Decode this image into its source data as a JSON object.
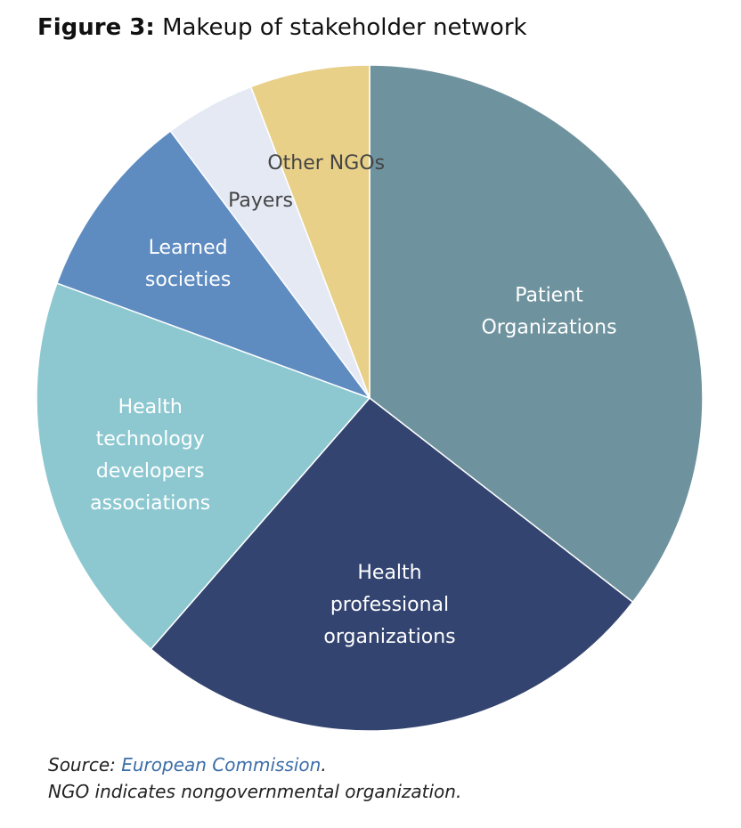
{
  "title": {
    "prefix": "Figure 3:",
    "text": "Makeup of stakeholder network"
  },
  "chart_data": {
    "type": "pie",
    "title": "Makeup of stakeholder network",
    "categories": [
      "Patient Organizations",
      "Health professional organizations",
      "Health technology developers associations",
      "Learned societies",
      "Payers",
      "Other NGOs"
    ],
    "labels": [
      [
        "Patient",
        "Organizations"
      ],
      [
        "Health",
        "professional",
        "organizations"
      ],
      [
        "Health",
        "technology",
        "developers",
        "associations"
      ],
      [
        "Learned",
        "societies"
      ],
      [
        "Payers"
      ],
      [
        "Other NGOs"
      ]
    ],
    "values": [
      35.5,
      25.9,
      19.2,
      9.2,
      4.4,
      5.8
    ],
    "colors": [
      "#6f939e",
      "#334470",
      "#8dc8d1",
      "#5e8bc0",
      "#e4e9f4",
      "#e8d089"
    ],
    "label_colors": [
      "#ffffff",
      "#ffffff",
      "#ffffff",
      "#ffffff",
      "#444444",
      "#444444"
    ],
    "start_angle_deg": 0,
    "direction": "clockwise",
    "legend": "none"
  },
  "footer": {
    "source_prefix": "Source: ",
    "source_link": "European Commission",
    "source_suffix": ".",
    "note": "NGO indicates nongovernmental organization."
  }
}
